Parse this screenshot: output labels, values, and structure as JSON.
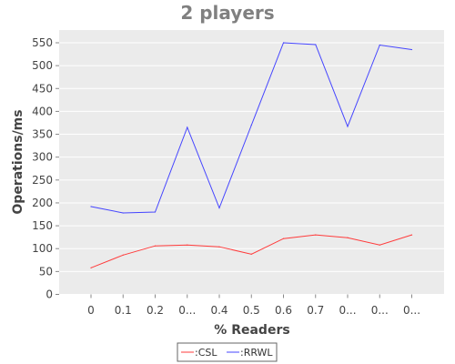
{
  "chart_data": {
    "type": "line",
    "title": "2 players",
    "xlabel": "% Readers",
    "ylabel": "Operations/ms",
    "categories": [
      "0",
      "0.1",
      "0.2",
      "0...",
      "0.4",
      "0.5",
      "0.6",
      "0.7",
      "0...",
      "0...",
      "0..."
    ],
    "series": [
      {
        "name": ":CSL",
        "color": "#ff3b3b",
        "values": [
          58,
          86,
          106,
          108,
          104,
          88,
          122,
          130,
          124,
          108,
          130
        ]
      },
      {
        "name": ":RRWL",
        "color": "#4444ff",
        "values": [
          192,
          178,
          180,
          365,
          189,
          370,
          550,
          546,
          367,
          545,
          535
        ]
      }
    ],
    "ylim": [
      0,
      575
    ],
    "yticks": [
      0,
      50,
      100,
      150,
      200,
      250,
      300,
      350,
      400,
      450,
      500,
      550
    ],
    "grid": true,
    "legend_position": "bottom-center"
  }
}
